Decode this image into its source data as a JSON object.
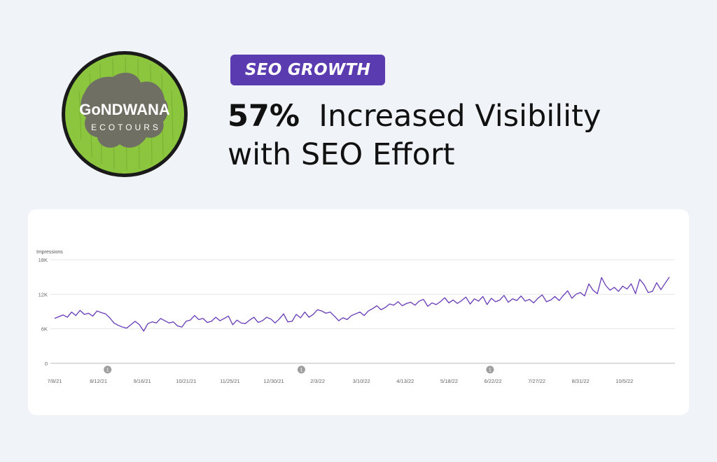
{
  "logo": {
    "line1": "GoNDWANA",
    "line2": "ECOTOURS",
    "colors": {
      "ring": "#1a1a1a",
      "grass": "#8cc63f",
      "continent": "#6f6f63",
      "text": "#ffffff"
    }
  },
  "badge": {
    "label": "SEO GROWTH",
    "color": "#5b3bb0"
  },
  "headline": {
    "percent": "57%",
    "line1_rest": "Increased Visibility",
    "line2": "with SEO Effort"
  },
  "chart_data": {
    "type": "line",
    "ylabel": "Impressions",
    "ylim": [
      0,
      18000
    ],
    "y_ticks": [
      "0",
      "6K",
      "12K",
      "18K"
    ],
    "y_tick_values": [
      0,
      6000,
      12000,
      18000
    ],
    "x_ticks": [
      "7/8/21",
      "8/12/21",
      "9/16/21",
      "10/21/21",
      "11/25/21",
      "12/30/21",
      "2/3/22",
      "3/10/22",
      "4/13/22",
      "5/18/22",
      "6/22/22",
      "7/27/22",
      "8/31/22",
      "10/5/22"
    ],
    "annotations": [
      {
        "label": "1",
        "x_index": 12.5
      },
      {
        "label": "1",
        "x_index": 58.2
      },
      {
        "label": "1",
        "x_index": 102.7
      }
    ],
    "series": [
      {
        "color": "#673ab7",
        "x_per_tick": 7.6,
        "values": [
          7800,
          8100,
          8400,
          8000,
          8900,
          8300,
          9200,
          8500,
          8700,
          8200,
          9100,
          8800,
          8600,
          7900,
          7000,
          6600,
          6300,
          6100,
          6700,
          7300,
          6700,
          5600,
          6900,
          7200,
          7000,
          7800,
          7400,
          7000,
          7200,
          6500,
          6300,
          7300,
          7500,
          8300,
          7600,
          7800,
          7100,
          7300,
          8000,
          7400,
          7800,
          8200,
          6700,
          7500,
          7000,
          6900,
          7500,
          8000,
          7100,
          7400,
          8000,
          7700,
          7000,
          7700,
          8600,
          7200,
          7300,
          8500,
          7900,
          8900,
          8000,
          8500,
          9300,
          9100,
          8700,
          8900,
          8200,
          7400,
          7900,
          7600,
          8300,
          8600,
          8900,
          8300,
          9100,
          9500,
          10000,
          9300,
          9700,
          10300,
          10100,
          10700,
          10000,
          10400,
          10600,
          10100,
          10800,
          11100,
          9900,
          10500,
          10200,
          10700,
          11400,
          10500,
          11000,
          10400,
          10900,
          11500,
          10300,
          11200,
          10800,
          11600,
          10200,
          11300,
          10700,
          11000,
          11800,
          10600,
          11200,
          10900,
          11700,
          10800,
          11100,
          10500,
          11300,
          11900,
          10700,
          11000,
          11600,
          10900,
          11800,
          12600,
          11300,
          12000,
          12300,
          11700,
          13800,
          12700,
          12100,
          14900,
          13500,
          12700,
          13200,
          12500,
          13400,
          12900,
          13800,
          12100,
          14600,
          13700,
          12300,
          12500,
          14000,
          12800,
          13900,
          15000
        ]
      }
    ]
  }
}
